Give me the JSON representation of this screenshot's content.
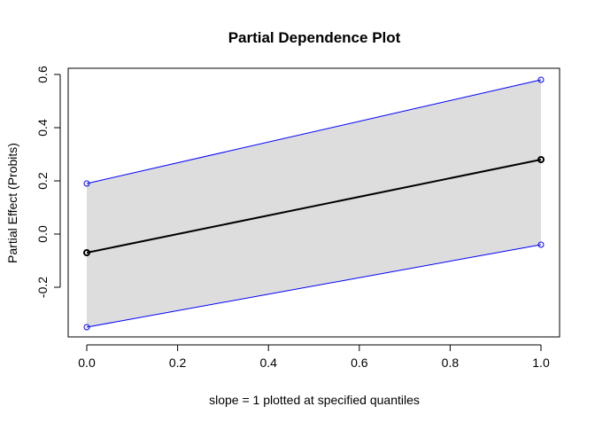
{
  "chart_data": {
    "type": "line",
    "title": "Partial Dependence Plot",
    "xlabel": "slope = 1 plotted at specified quantiles",
    "ylabel": "Partial Effect (Probits)",
    "xlim": [
      0,
      1
    ],
    "ylim": [
      -0.35,
      0.58
    ],
    "x_ticks": [
      "0.0",
      "0.2",
      "0.4",
      "0.6",
      "0.8",
      "1.0"
    ],
    "x_tick_values": [
      0,
      0.2,
      0.4,
      0.6,
      0.8,
      1.0
    ],
    "y_ticks": [
      "-0.2",
      "0.0",
      "0.2",
      "0.4",
      "0.6"
    ],
    "y_tick_values": [
      -0.2,
      0,
      0.2,
      0.4,
      0.6
    ],
    "grid": false,
    "x": [
      0,
      1
    ],
    "series": [
      {
        "role": "estimate",
        "values": [
          -0.07,
          0.28
        ],
        "color": "#000000",
        "marker": "circle"
      },
      {
        "role": "upper",
        "values": [
          0.19,
          0.58
        ],
        "color": "#0000ff",
        "marker": "circle"
      },
      {
        "role": "lower",
        "values": [
          -0.35,
          -0.04
        ],
        "color": "#0000ff",
        "marker": "circle"
      }
    ],
    "band_fill": "#dddddd"
  }
}
